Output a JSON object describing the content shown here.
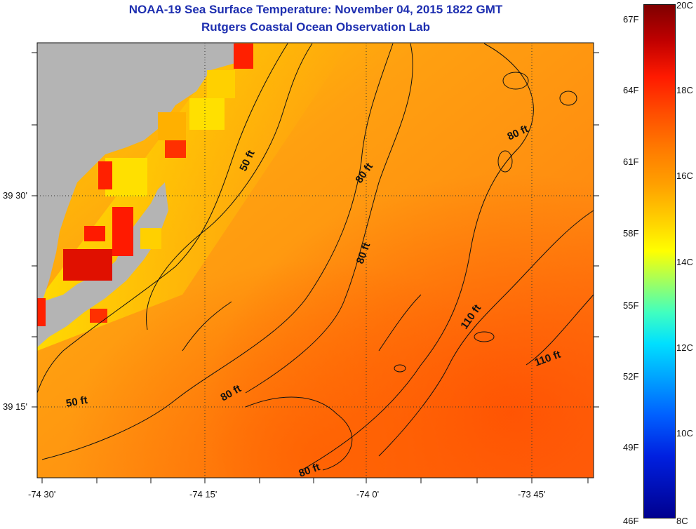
{
  "title": {
    "line1": "NOAA-19 Sea Surface Temperature:  November 04, 2015 1822 GMT",
    "line2": "Rutgers Coastal Ocean Observation Lab"
  },
  "map": {
    "lat_ticks": [
      "39 30'",
      "39 15'"
    ],
    "lon_ticks": [
      "-74 30'",
      "-74 15'",
      "-74 0'",
      "-73 45'"
    ],
    "contour_labels": [
      "50 ft",
      "80 ft",
      "80 ft",
      "80 ft",
      "110 ft",
      "110 ft",
      "50 ft",
      "80 ft",
      "80 ft"
    ]
  },
  "colorbar": {
    "fahrenheit": [
      "67F",
      "64F",
      "61F",
      "58F",
      "55F",
      "52F",
      "49F",
      "46F"
    ],
    "celsius": [
      "20C",
      "18C",
      "16C",
      "14C",
      "12C",
      "10C",
      "8C"
    ]
  },
  "colors": {
    "title": "#1e2fb0",
    "land": "#b4b4b4",
    "sea_warm": "#ff7a10",
    "sea_mid": "#ffa010",
    "sea_cool": "#ffd000"
  }
}
